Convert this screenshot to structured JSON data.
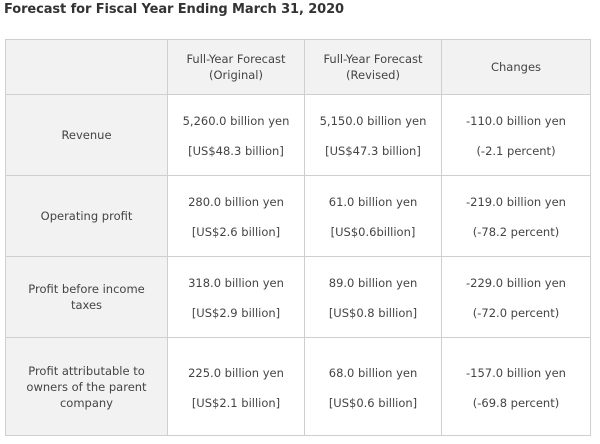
{
  "title": "Forecast for Fiscal Year Ending March 31, 2020",
  "columns": [
    {
      "line1": "Full-Year Forecast",
      "line2": "(Original)"
    },
    {
      "line1": "Full-Year Forecast",
      "line2": "(Revised)"
    },
    {
      "line1": "Changes",
      "line2": ""
    }
  ],
  "rows": [
    {
      "label_lines": [
        "Revenue"
      ],
      "cells": [
        {
          "main": "5,260.0 billion yen",
          "sub": "[US$48.3 billion]"
        },
        {
          "main": "5,150.0 billion yen",
          "sub": "[US$47.3 billion]"
        },
        {
          "main": "-110.0 billion yen",
          "sub": "(-2.1 percent)"
        }
      ]
    },
    {
      "label_lines": [
        "Operating profit"
      ],
      "cells": [
        {
          "main": "280.0 billion yen",
          "sub": "[US$2.6 billion]"
        },
        {
          "main": "61.0 billion yen",
          "sub": "[US$0.6billion]"
        },
        {
          "main": "-219.0 billion yen",
          "sub": "(-78.2 percent)"
        }
      ]
    },
    {
      "label_lines": [
        "Profit before income",
        "taxes"
      ],
      "cells": [
        {
          "main": "318.0 billion yen",
          "sub": "[US$2.9 billion]"
        },
        {
          "main": "89.0 billion yen",
          "sub": "[US$0.8 billion]"
        },
        {
          "main": "-229.0 billion yen",
          "sub": "(-72.0 percent)"
        }
      ]
    },
    {
      "label_lines": [
        "Profit attributable to",
        "owners of the parent",
        "company"
      ],
      "cells": [
        {
          "main": "225.0 billion yen",
          "sub": "[US$2.1 billion]"
        },
        {
          "main": "68.0 billion yen",
          "sub": "[US$0.6 billion]"
        },
        {
          "main": "-157.0 billion yen",
          "sub": "(-69.8 percent)"
        }
      ]
    }
  ]
}
